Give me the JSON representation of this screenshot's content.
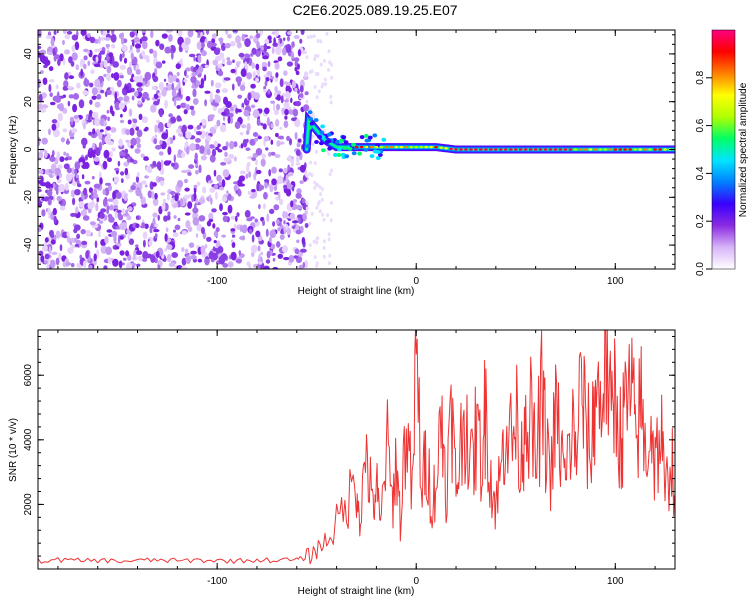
{
  "title": "C2E6.2025.089.19.25.E07",
  "chart_data": [
    {
      "type": "heatmap",
      "xlabel": "Height of straight line (km)",
      "ylabel": "Frequency (Hz)",
      "xlim": [
        -190,
        130
      ],
      "ylim": [
        -50,
        50
      ],
      "xticks": [
        -100,
        0,
        100
      ],
      "yticks": [
        -40,
        -20,
        0,
        20,
        40
      ],
      "noise_region_x": [
        -190,
        -55
      ],
      "signal_onset_x": -55,
      "ridge": [
        {
          "x": -54,
          "y": 12
        },
        {
          "x": -50,
          "y": 8
        },
        {
          "x": -46,
          "y": 4
        },
        {
          "x": -40,
          "y": 1
        },
        {
          "x": -30,
          "y": 1
        },
        {
          "x": -20,
          "y": 1
        },
        {
          "x": -10,
          "y": 1
        },
        {
          "x": 0,
          "y": 1
        },
        {
          "x": 10,
          "y": 1
        },
        {
          "x": 20,
          "y": 0
        },
        {
          "x": 40,
          "y": 0
        },
        {
          "x": 60,
          "y": 0
        },
        {
          "x": 80,
          "y": 0
        },
        {
          "x": 100,
          "y": 0
        },
        {
          "x": 130,
          "y": 0
        }
      ],
      "colorbar": {
        "label": "Normalized spectral amplitude",
        "range": [
          0.0,
          1.0
        ],
        "ticks": [
          0.0,
          0.2,
          0.4,
          0.6,
          0.8
        ],
        "colors": [
          "#ffffff",
          "#d8b4f8",
          "#8a2be2",
          "#3a00ff",
          "#0080ff",
          "#00e5ff",
          "#00ff66",
          "#b0ff00",
          "#ffff00",
          "#ff8000",
          "#ff0000",
          "#ff0080"
        ]
      }
    },
    {
      "type": "line",
      "xlabel": "Height of straight line (km)",
      "ylabel": "SNR (10 * v/v)",
      "xlim": [
        -190,
        130
      ],
      "ylim": [
        0,
        7400
      ],
      "xticks": [
        -100,
        0,
        100
      ],
      "yticks": [
        2000,
        4000,
        6000
      ],
      "color": "#ee3333",
      "series": [
        {
          "x": [
            -190,
            -180,
            -170,
            -160,
            -150,
            -140,
            -130,
            -120,
            -110,
            -100,
            -90,
            -80,
            -70,
            -60,
            -55,
            -50,
            -45,
            -40,
            -35,
            -30,
            -28,
            -25,
            -22,
            -20,
            -18,
            -15,
            -12,
            -10,
            -8,
            -5,
            -2,
            0,
            3,
            5,
            8,
            10,
            13,
            15,
            18,
            20,
            22,
            25,
            28,
            30,
            33,
            35,
            38,
            40,
            43,
            45,
            48,
            50,
            53,
            55,
            58,
            60,
            63,
            65,
            68,
            70,
            73,
            75,
            78,
            80,
            83,
            85,
            88,
            90,
            93,
            95,
            98,
            100,
            103,
            105,
            108,
            110,
            113,
            115,
            118,
            120,
            123,
            125,
            128,
            130
          ],
          "y": [
            250,
            280,
            260,
            270,
            240,
            260,
            280,
            250,
            270,
            260,
            250,
            280,
            270,
            290,
            350,
            600,
            900,
            1400,
            2000,
            2800,
            1500,
            3800,
            1800,
            2600,
            1200,
            4000,
            2000,
            3400,
            1500,
            4600,
            2200,
            6600,
            2400,
            3600,
            2000,
            2800,
            4600,
            2600,
            4800,
            2400,
            3600,
            5000,
            3000,
            4200,
            3400,
            5200,
            2400,
            2000,
            3200,
            4800,
            3800,
            4600,
            3400,
            5400,
            4400,
            3200,
            5200,
            4000,
            3000,
            4800,
            3600,
            2600,
            4400,
            3800,
            5600,
            4400,
            3600,
            5800,
            4800,
            7300,
            4200,
            5800,
            3800,
            5000,
            5400,
            4200,
            5000,
            3600,
            4600,
            3200,
            4400,
            2000,
            3800,
            2200
          ]
        }
      ]
    }
  ]
}
